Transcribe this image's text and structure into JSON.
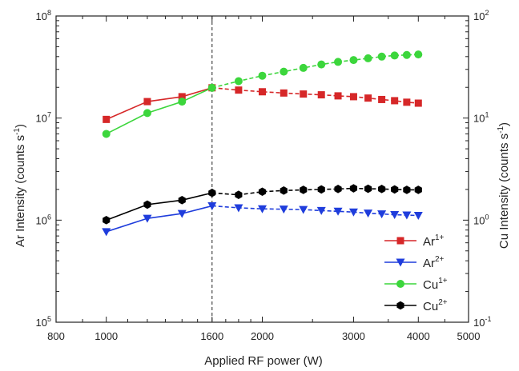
{
  "chart_data": {
    "type": "line",
    "title": "",
    "xlabel": "Applied RF power (W)",
    "ylabel_left": "Ar Intensity (counts s",
    "ylabel_left_sup": "-1",
    "ylabel_left_end": ")",
    "ylabel_right": "Cu Intensity (counts s",
    "ylabel_right_sup": "-1",
    "ylabel_right_end": ")",
    "x_scale": "log",
    "y_scale": "log",
    "xlim": [
      800,
      5000
    ],
    "ylim_left": [
      100000,
      100000000
    ],
    "ylim_right": [
      0.1,
      100
    ],
    "x_ticks": [
      800,
      1000,
      1600,
      2000,
      3000,
      4000,
      5000
    ],
    "x_tick_labels": [
      "800",
      "1000",
      "1600",
      "2000",
      "3000",
      "4000",
      "5000"
    ],
    "y_left_ticks": [
      {
        "base": "10",
        "exp": "5",
        "value": 100000
      },
      {
        "base": "10",
        "exp": "6",
        "value": 1000000
      },
      {
        "base": "10",
        "exp": "7",
        "value": 10000000
      },
      {
        "base": "10",
        "exp": "8",
        "value": 100000000
      }
    ],
    "y_right_ticks": [
      {
        "base": "10",
        "exp": "-1",
        "value": 0.1
      },
      {
        "base": "10",
        "exp": "0",
        "value": 1
      },
      {
        "base": "10",
        "exp": "1",
        "value": 10
      },
      {
        "base": "10",
        "exp": "2",
        "value": 100
      }
    ],
    "vertical_line_x": 1600,
    "legend_position": "lower-right",
    "x": [
      1000,
      1200,
      1400,
      1600,
      1800,
      2000,
      2200,
      2400,
      2600,
      2800,
      3000,
      3200,
      3400,
      3600,
      3800,
      4000
    ],
    "series": [
      {
        "name": "Ar",
        "sup": "1+",
        "axis": "left",
        "marker": "square",
        "color": "#d62728",
        "values": [
          9700000,
          14500000,
          16200000,
          19800000,
          18800000,
          18100000,
          17600000,
          17200000,
          16900000,
          16500000,
          16200000,
          15700000,
          15200000,
          14800000,
          14300000,
          14000000
        ]
      },
      {
        "name": "Ar",
        "sup": "2+",
        "axis": "left",
        "marker": "triangle-down",
        "color": "#1f3ddc",
        "values": [
          770000,
          1040000,
          1160000,
          1380000,
          1320000,
          1290000,
          1280000,
          1270000,
          1240000,
          1220000,
          1200000,
          1170000,
          1150000,
          1130000,
          1120000,
          1110000
        ]
      },
      {
        "name": "Cu",
        "sup": "1+",
        "axis": "right",
        "marker": "circle",
        "color": "#3cd63c",
        "values": [
          7.0,
          11.2,
          14.5,
          19.8,
          23.0,
          26.0,
          28.5,
          31.0,
          33.5,
          35.5,
          37.0,
          38.5,
          40.0,
          41.0,
          41.5,
          42.0
        ]
      },
      {
        "name": "Cu",
        "sup": "2+",
        "axis": "right",
        "marker": "hexagon",
        "color": "#000000",
        "values": [
          1.0,
          1.42,
          1.57,
          1.85,
          1.77,
          1.9,
          1.95,
          1.98,
          2.0,
          2.02,
          2.05,
          2.03,
          2.02,
          2.0,
          1.98,
          1.98
        ]
      }
    ]
  }
}
